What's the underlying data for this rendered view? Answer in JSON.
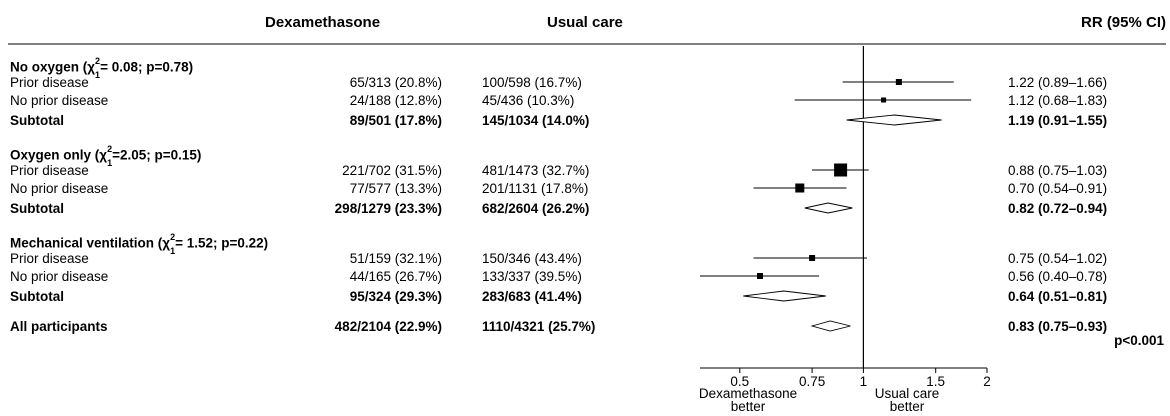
{
  "chart_data": {
    "type": "forest",
    "headers": {
      "group1": "Dexamethasone",
      "group2": "Usual care",
      "effect": "RR (95% CI)"
    },
    "x_scale": "log",
    "xlim": [
      0.4,
      2.0
    ],
    "reference_line": 1,
    "x_ticks": [
      "0.5",
      "0.75",
      "1",
      "1.5",
      "2"
    ],
    "favours_left": [
      "Dexamethasone",
      "better"
    ],
    "favours_right": [
      "Usual care",
      "better"
    ],
    "groups": [
      {
        "title": "No oxygen (χ₁²= 0.08; p=0.78)",
        "title_main": "No oxygen (",
        "title_stat": "= 0.08; p=0.78)",
        "rows": [
          {
            "label": "Prior disease",
            "dex": "65/313 (20.8%)",
            "usual": "100/598 (16.7%)",
            "ci_text": "1.22 (0.89–1.66)",
            "rr": 1.22,
            "lo": 0.89,
            "hi": 1.66
          },
          {
            "label": "No prior disease",
            "dex": "24/188 (12.8%)",
            "usual": "45/436 (10.3%)",
            "ci_text": "1.12 (0.68–1.83)",
            "rr": 1.12,
            "lo": 0.68,
            "hi": 1.83
          }
        ],
        "subtotal": {
          "label": "Subtotal",
          "dex": "89/501 (17.8%)",
          "usual": "145/1034 (14.0%)",
          "ci_text": "1.19 (0.91–1.55)",
          "rr": 1.19,
          "lo": 0.91,
          "hi": 1.55
        }
      },
      {
        "title": "Oxygen only (χ₁²=2.05; p=0.15)",
        "title_main": "Oxygen only (",
        "title_stat": "=2.05; p=0.15)",
        "rows": [
          {
            "label": "Prior disease",
            "dex": "221/702 (31.5%)",
            "usual": "481/1473 (32.7%)",
            "ci_text": "0.88 (0.75–1.03)",
            "rr": 0.88,
            "lo": 0.75,
            "hi": 1.03
          },
          {
            "label": "No prior disease",
            "dex": "77/577 (13.3%)",
            "usual": "201/1131 (17.8%)",
            "ci_text": "0.70 (0.54–0.91)",
            "rr": 0.7,
            "lo": 0.54,
            "hi": 0.91
          }
        ],
        "subtotal": {
          "label": "Subtotal",
          "dex": "298/1279 (23.3%)",
          "usual": "682/2604 (26.2%)",
          "ci_text": "0.82 (0.72–0.94)",
          "rr": 0.82,
          "lo": 0.72,
          "hi": 0.94
        }
      },
      {
        "title": "Mechanical ventilation (χ₁²= 1.52; p=0.22)",
        "title_main": "Mechanical ventilation (",
        "title_stat": "= 1.52; p=0.22)",
        "rows": [
          {
            "label": "Prior disease",
            "dex": "51/159 (32.1%)",
            "usual": "150/346 (43.4%)",
            "ci_text": "0.75 (0.54–1.02)",
            "rr": 0.75,
            "lo": 0.54,
            "hi": 1.02
          },
          {
            "label": "No prior disease",
            "dex": "44/165 (26.7%)",
            "usual": "133/337 (39.5%)",
            "ci_text": "0.56 (0.40–0.78)",
            "rr": 0.56,
            "lo": 0.4,
            "hi": 0.78
          }
        ],
        "subtotal": {
          "label": "Subtotal",
          "dex": "95/324 (29.3%)",
          "usual": "283/683 (41.4%)",
          "ci_text": "0.64 (0.51–0.81)",
          "rr": 0.64,
          "lo": 0.51,
          "hi": 0.81
        }
      }
    ],
    "overall": {
      "label": "All participants",
      "dex": "482/2104 (22.9%)",
      "usual": "1110/4321 (25.7%)",
      "ci_text": "0.83 (0.75–0.93)",
      "p_text": "p<0.001",
      "rr": 0.83,
      "lo": 0.75,
      "hi": 0.93
    }
  }
}
